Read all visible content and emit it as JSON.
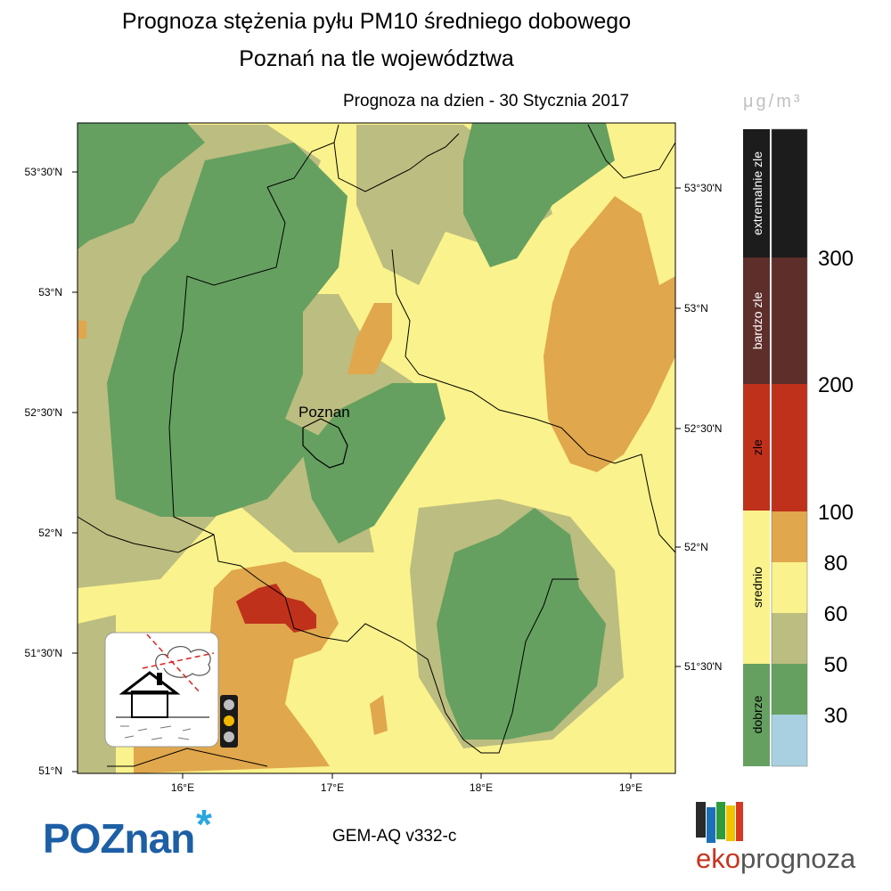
{
  "title_line1": "Prognoza stężenia pyłu PM10 średniego dobowego",
  "title_line2": "Poznań na tle województwa",
  "forecast_date": "Prognoza na dzien -  30 Stycznia 2017",
  "unit": "μg/m³",
  "city_label": "Poznan",
  "model_label": "GEM-AQ v332-c",
  "logo_left": "POZnan",
  "logo_right_a": "eko",
  "logo_right_b": "prognoza",
  "lat_labels_left": [
    "53°30'N",
    "53°N",
    "52°30'N",
    "52°N",
    "51°30'N",
    "51°N"
  ],
  "lat_labels_right": [
    "53°30'N",
    "53°N",
    "52°30'N",
    "52°N",
    "51°30'N"
  ],
  "lon_labels": [
    "16°E",
    "17°E",
    "18°E",
    "19°E"
  ],
  "categories": [
    {
      "name": "extremalnie zle",
      "color": "#1c1c1c"
    },
    {
      "name": "bardzo zle",
      "color": "#5e2e2a"
    },
    {
      "name": "zle",
      "color": "#c0311c"
    },
    {
      "name": "srednio",
      "color": "#faf28c"
    },
    {
      "name": "dobrze",
      "color": "#65a060"
    }
  ],
  "scale_colors": [
    "#1c1c1c",
    "#5e2e2a",
    "#c0311c",
    "#e0a74c",
    "#faf28c",
    "#bcbd80",
    "#65a060",
    "#a8d0e0"
  ],
  "scale_values": [
    "300",
    "200",
    "100",
    "80",
    "60",
    "50",
    "30"
  ],
  "map_colors": {
    "low": "#65a060",
    "mid_low": "#bcbd80",
    "mid": "#faf28c",
    "high": "#e0a74c",
    "very_high": "#c0311c"
  }
}
